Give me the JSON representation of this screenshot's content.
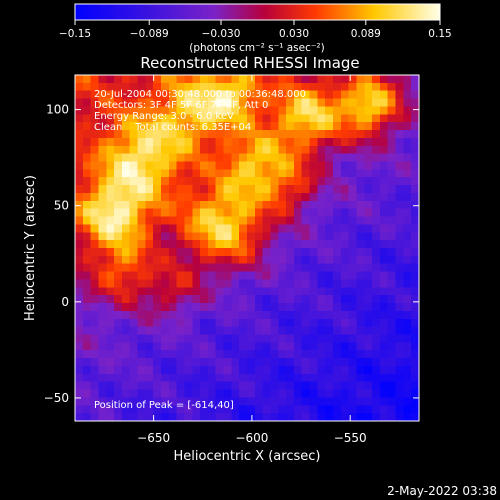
{
  "chart_data": {
    "type": "heatmap",
    "title": "Reconstructed RHESSI Image",
    "xlabel": "Heliocentric X (arcsec)",
    "ylabel": "Heliocentric Y (arcsec)",
    "xlim": [
      -690,
      -515
    ],
    "ylim": [
      -62,
      118
    ],
    "x_ticks": [
      -650,
      -600,
      -550
    ],
    "x_tick_labels": [
      "−650",
      "−600",
      "−550"
    ],
    "y_ticks": [
      -50,
      0,
      50,
      100
    ],
    "y_tick_labels": [
      "−50",
      "0",
      "50",
      "100"
    ],
    "colorbar": {
      "range": [
        -0.15,
        0.15
      ],
      "ticks": [
        -0.15,
        -0.089,
        -0.03,
        0.03,
        0.089,
        0.15
      ],
      "tick_labels": [
        "−0.15",
        "−0.089",
        "−0.030",
        "0.030",
        "0.089",
        "0.15"
      ],
      "units_label": "(photons cm⁻² s⁻¹ asec⁻²)",
      "colors": [
        "#0000ff",
        "#7a22c8",
        "#b8003a",
        "#ff3a00",
        "#ffc800",
        "#ffffe8"
      ]
    },
    "info_lines": [
      "20-Jul-2004 00:30:48.000 to 00:36:48.000",
      "Detectors: 3F 4F 5F 6F 7F 8F, Att 0",
      "Energy Range: 3.0 - 6.0 keV",
      "Clean    Total counts: 6.35E+04"
    ],
    "peak_label": "Position of Peak = [-614,40]",
    "peak_position": [
      -614,
      40
    ],
    "grid": false
  },
  "footer": {
    "timestamp": "2-May-2022 03:38"
  }
}
